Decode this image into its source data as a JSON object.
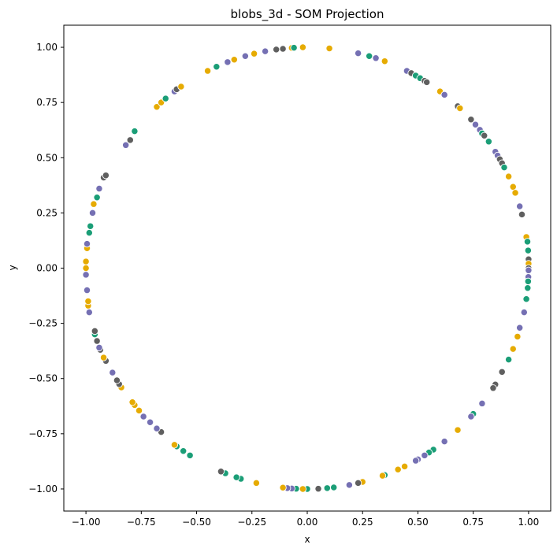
{
  "chart_data": {
    "type": "scatter",
    "title": "blobs_3d - SOM Projection",
    "xlabel": "x",
    "ylabel": "y",
    "xlim": [
      -1.1,
      1.1
    ],
    "ylim": [
      -1.1,
      1.1
    ],
    "xticks": [
      -1.0,
      -0.75,
      -0.5,
      -0.25,
      0.0,
      0.25,
      0.5,
      0.75,
      1.0
    ],
    "yticks": [
      -1.0,
      -0.75,
      -0.5,
      -0.25,
      0.0,
      0.25,
      0.5,
      0.75,
      1.0
    ],
    "xtick_labels": [
      "−1.00",
      "−0.75",
      "−0.50",
      "−0.25",
      "0.00",
      "0.25",
      "0.50",
      "0.75",
      "1.00"
    ],
    "ytick_labels": [
      "−1.00",
      "−0.75",
      "−0.50",
      "−0.25",
      "0.00",
      "0.25",
      "0.50",
      "0.75",
      "1.00"
    ],
    "grid": false,
    "colors": {
      "c0": "#1b9e77",
      "c1": "#e6ab02",
      "c2": "#7570b3",
      "c3": "#5f5f5f"
    },
    "points": [
      {
        "x": -0.02,
        "y": 1.0,
        "c": "c1"
      },
      {
        "x": -0.11,
        "y": 0.993,
        "c": "c3"
      },
      {
        "x": -0.07,
        "y": 0.997,
        "c": "c1"
      },
      {
        "x": -0.06,
        "y": 0.998,
        "c": "c0"
      },
      {
        "x": -0.14,
        "y": 0.99,
        "c": "c3"
      },
      {
        "x": -0.19,
        "y": 0.982,
        "c": "c2"
      },
      {
        "x": -0.24,
        "y": 0.971,
        "c": "c1"
      },
      {
        "x": -0.28,
        "y": 0.96,
        "c": "c2"
      },
      {
        "x": -0.33,
        "y": 0.944,
        "c": "c1"
      },
      {
        "x": -0.36,
        "y": 0.933,
        "c": "c2"
      },
      {
        "x": -0.41,
        "y": 0.912,
        "c": "c0"
      },
      {
        "x": -0.45,
        "y": 0.893,
        "c": "c1"
      },
      {
        "x": 0.1,
        "y": 0.995,
        "c": "c1"
      },
      {
        "x": 0.23,
        "y": 0.973,
        "c": "c2"
      },
      {
        "x": 0.28,
        "y": 0.96,
        "c": "c0"
      },
      {
        "x": 0.31,
        "y": 0.951,
        "c": "c2"
      },
      {
        "x": 0.35,
        "y": 0.937,
        "c": "c1"
      },
      {
        "x": 0.45,
        "y": 0.893,
        "c": "c2"
      },
      {
        "x": 0.47,
        "y": 0.883,
        "c": "c3"
      },
      {
        "x": 0.49,
        "y": 0.872,
        "c": "c0"
      },
      {
        "x": 0.51,
        "y": 0.86,
        "c": "c0"
      },
      {
        "x": 0.53,
        "y": 0.848,
        "c": "c3"
      },
      {
        "x": 0.54,
        "y": 0.842,
        "c": "c3"
      },
      {
        "x": 0.6,
        "y": 0.8,
        "c": "c1"
      },
      {
        "x": 0.62,
        "y": 0.785,
        "c": "c2"
      },
      {
        "x": 0.68,
        "y": 0.733,
        "c": "c3"
      },
      {
        "x": 0.69,
        "y": 0.724,
        "c": "c1"
      },
      {
        "x": 0.74,
        "y": 0.673,
        "c": "c3"
      },
      {
        "x": 0.76,
        "y": 0.65,
        "c": "c2"
      },
      {
        "x": 0.78,
        "y": 0.626,
        "c": "c2"
      },
      {
        "x": 0.79,
        "y": 0.61,
        "c": "c0"
      },
      {
        "x": 0.8,
        "y": 0.6,
        "c": "c3"
      },
      {
        "x": 0.82,
        "y": 0.573,
        "c": "c0"
      },
      {
        "x": 0.85,
        "y": 0.527,
        "c": "c2"
      },
      {
        "x": 0.86,
        "y": 0.51,
        "c": "c2"
      },
      {
        "x": 0.87,
        "y": 0.493,
        "c": "c3"
      },
      {
        "x": 0.88,
        "y": 0.475,
        "c": "c3"
      },
      {
        "x": 0.89,
        "y": 0.456,
        "c": "c0"
      },
      {
        "x": 0.91,
        "y": 0.415,
        "c": "c1"
      },
      {
        "x": 0.93,
        "y": 0.368,
        "c": "c1"
      },
      {
        "x": 0.94,
        "y": 0.341,
        "c": "c1"
      },
      {
        "x": 0.96,
        "y": 0.28,
        "c": "c2"
      },
      {
        "x": 0.97,
        "y": 0.243,
        "c": "c3"
      },
      {
        "x": 0.99,
        "y": 0.141,
        "c": "c1"
      },
      {
        "x": 0.995,
        "y": 0.12,
        "c": "c0"
      },
      {
        "x": 0.998,
        "y": 0.08,
        "c": "c0"
      },
      {
        "x": 1.0,
        "y": 0.04,
        "c": "c3"
      },
      {
        "x": 1.0,
        "y": 0.02,
        "c": "c1"
      },
      {
        "x": 1.0,
        "y": 0.0,
        "c": "c3"
      },
      {
        "x": 1.0,
        "y": -0.01,
        "c": "c2"
      },
      {
        "x": 0.999,
        "y": -0.04,
        "c": "c2"
      },
      {
        "x": 0.998,
        "y": -0.06,
        "c": "c0"
      },
      {
        "x": 0.996,
        "y": -0.09,
        "c": "c0"
      },
      {
        "x": 0.99,
        "y": -0.14,
        "c": "c0"
      },
      {
        "x": 0.98,
        "y": -0.2,
        "c": "c2"
      },
      {
        "x": 0.96,
        "y": -0.27,
        "c": "c2"
      },
      {
        "x": 0.95,
        "y": -0.31,
        "c": "c1"
      },
      {
        "x": 0.93,
        "y": -0.366,
        "c": "c1"
      },
      {
        "x": 0.91,
        "y": -0.414,
        "c": "c0"
      },
      {
        "x": 0.88,
        "y": -0.47,
        "c": "c3"
      },
      {
        "x": 0.85,
        "y": -0.527,
        "c": "c3"
      },
      {
        "x": 0.84,
        "y": -0.543,
        "c": "c3"
      },
      {
        "x": 0.79,
        "y": -0.613,
        "c": "c2"
      },
      {
        "x": 0.75,
        "y": -0.66,
        "c": "c0"
      },
      {
        "x": 0.74,
        "y": -0.672,
        "c": "c2"
      },
      {
        "x": 0.68,
        "y": -0.733,
        "c": "c1"
      },
      {
        "x": 0.62,
        "y": -0.785,
        "c": "c2"
      },
      {
        "x": 0.57,
        "y": -0.822,
        "c": "c0"
      },
      {
        "x": 0.55,
        "y": -0.835,
        "c": "c0"
      },
      {
        "x": 0.53,
        "y": -0.848,
        "c": "c2"
      },
      {
        "x": 0.5,
        "y": -0.866,
        "c": "c2"
      },
      {
        "x": 0.49,
        "y": -0.872,
        "c": "c2"
      },
      {
        "x": 0.44,
        "y": -0.898,
        "c": "c1"
      },
      {
        "x": 0.41,
        "y": -0.912,
        "c": "c1"
      },
      {
        "x": 0.35,
        "y": -0.937,
        "c": "c0"
      },
      {
        "x": 0.34,
        "y": -0.94,
        "c": "c1"
      },
      {
        "x": 0.25,
        "y": -0.968,
        "c": "c1"
      },
      {
        "x": 0.23,
        "y": -0.973,
        "c": "c3"
      },
      {
        "x": 0.19,
        "y": -0.982,
        "c": "c2"
      },
      {
        "x": 0.12,
        "y": -0.993,
        "c": "c0"
      },
      {
        "x": 0.09,
        "y": -0.996,
        "c": "c0"
      },
      {
        "x": 0.05,
        "y": -0.999,
        "c": "c3"
      },
      {
        "x": 0.0,
        "y": -1.0,
        "c": "c0"
      },
      {
        "x": -0.02,
        "y": -1.0,
        "c": "c1"
      },
      {
        "x": -0.05,
        "y": -0.999,
        "c": "c0"
      },
      {
        "x": -0.07,
        "y": -0.998,
        "c": "c2"
      },
      {
        "x": -0.09,
        "y": -0.996,
        "c": "c2"
      },
      {
        "x": -0.11,
        "y": -0.994,
        "c": "c1"
      },
      {
        "x": -0.23,
        "y": -0.973,
        "c": "c1"
      },
      {
        "x": -0.3,
        "y": -0.954,
        "c": "c0"
      },
      {
        "x": -0.32,
        "y": -0.947,
        "c": "c0"
      },
      {
        "x": -0.37,
        "y": -0.929,
        "c": "c0"
      },
      {
        "x": -0.39,
        "y": -0.921,
        "c": "c3"
      },
      {
        "x": -0.53,
        "y": -0.848,
        "c": "c0"
      },
      {
        "x": -0.56,
        "y": -0.828,
        "c": "c0"
      },
      {
        "x": -0.59,
        "y": -0.807,
        "c": "c0"
      },
      {
        "x": -0.6,
        "y": -0.8,
        "c": "c1"
      },
      {
        "x": -0.66,
        "y": -0.742,
        "c": "c3"
      },
      {
        "x": -0.68,
        "y": -0.726,
        "c": "c2"
      },
      {
        "x": -0.71,
        "y": -0.698,
        "c": "c2"
      },
      {
        "x": -0.74,
        "y": -0.672,
        "c": "c2"
      },
      {
        "x": -0.76,
        "y": -0.645,
        "c": "c1"
      },
      {
        "x": -0.78,
        "y": -0.62,
        "c": "c1"
      },
      {
        "x": -0.79,
        "y": -0.607,
        "c": "c1"
      },
      {
        "x": -0.84,
        "y": -0.54,
        "c": "c1"
      },
      {
        "x": -0.85,
        "y": -0.525,
        "c": "c3"
      },
      {
        "x": -0.86,
        "y": -0.508,
        "c": "c3"
      },
      {
        "x": -0.88,
        "y": -0.473,
        "c": "c2"
      },
      {
        "x": -0.91,
        "y": -0.42,
        "c": "c3"
      },
      {
        "x": -0.92,
        "y": -0.405,
        "c": "c1"
      },
      {
        "x": -0.935,
        "y": -0.37,
        "c": "c3"
      },
      {
        "x": -0.94,
        "y": -0.36,
        "c": "c2"
      },
      {
        "x": -0.95,
        "y": -0.33,
        "c": "c3"
      },
      {
        "x": -0.96,
        "y": -0.3,
        "c": "c0"
      },
      {
        "x": -0.96,
        "y": -0.285,
        "c": "c3"
      },
      {
        "x": -0.985,
        "y": -0.2,
        "c": "c2"
      },
      {
        "x": -0.99,
        "y": -0.17,
        "c": "c1"
      },
      {
        "x": -0.99,
        "y": -0.15,
        "c": "c1"
      },
      {
        "x": -0.995,
        "y": -0.1,
        "c": "c2"
      },
      {
        "x": -1.0,
        "y": -0.03,
        "c": "c2"
      },
      {
        "x": -1.0,
        "y": 0.0,
        "c": "c1"
      },
      {
        "x": -1.0,
        "y": 0.03,
        "c": "c1"
      },
      {
        "x": -0.995,
        "y": 0.09,
        "c": "c1"
      },
      {
        "x": -0.995,
        "y": 0.11,
        "c": "c2"
      },
      {
        "x": -0.985,
        "y": 0.16,
        "c": "c0"
      },
      {
        "x": -0.98,
        "y": 0.19,
        "c": "c0"
      },
      {
        "x": -0.97,
        "y": 0.25,
        "c": "c2"
      },
      {
        "x": -0.965,
        "y": 0.29,
        "c": "c1"
      },
      {
        "x": -0.95,
        "y": 0.32,
        "c": "c0"
      },
      {
        "x": -0.94,
        "y": 0.36,
        "c": "c2"
      },
      {
        "x": -0.92,
        "y": 0.41,
        "c": "c3"
      },
      {
        "x": -0.91,
        "y": 0.42,
        "c": "c3"
      },
      {
        "x": -0.82,
        "y": 0.557,
        "c": "c2"
      },
      {
        "x": -0.8,
        "y": 0.58,
        "c": "c3"
      },
      {
        "x": -0.78,
        "y": 0.62,
        "c": "c0"
      },
      {
        "x": -0.68,
        "y": 0.73,
        "c": "c1"
      },
      {
        "x": -0.66,
        "y": 0.75,
        "c": "c1"
      },
      {
        "x": -0.64,
        "y": 0.768,
        "c": "c0"
      },
      {
        "x": -0.6,
        "y": 0.8,
        "c": "c2"
      },
      {
        "x": -0.59,
        "y": 0.81,
        "c": "c3"
      },
      {
        "x": -0.57,
        "y": 0.822,
        "c": "c1"
      }
    ]
  }
}
